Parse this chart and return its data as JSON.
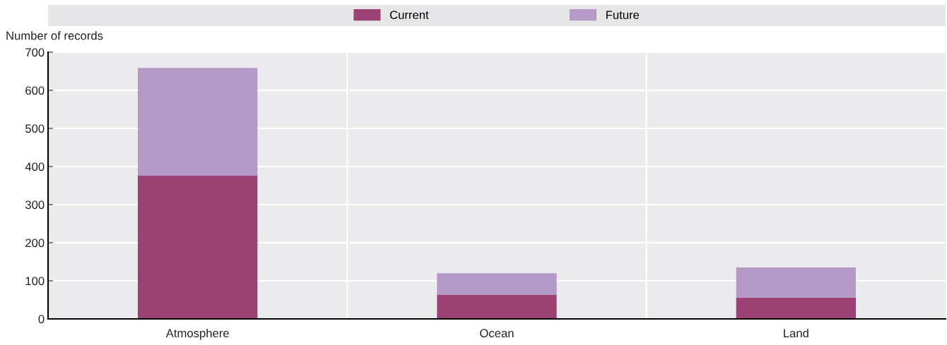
{
  "chart_data": {
    "type": "bar",
    "stacked": true,
    "ylabel": "Number of records",
    "categories": [
      "Atmosphere",
      "Ocean",
      "Land"
    ],
    "series": [
      {
        "name": "Current",
        "color": "#9b4174",
        "values": [
          376,
          63,
          56
        ]
      },
      {
        "name": "Future",
        "color": "#b59ac8",
        "values": [
          283,
          57,
          79
        ]
      }
    ],
    "ylim": [
      0,
      700
    ],
    "yticks": [
      0,
      100,
      200,
      300,
      400,
      500,
      600,
      700
    ],
    "grid": true,
    "legend": "top"
  }
}
